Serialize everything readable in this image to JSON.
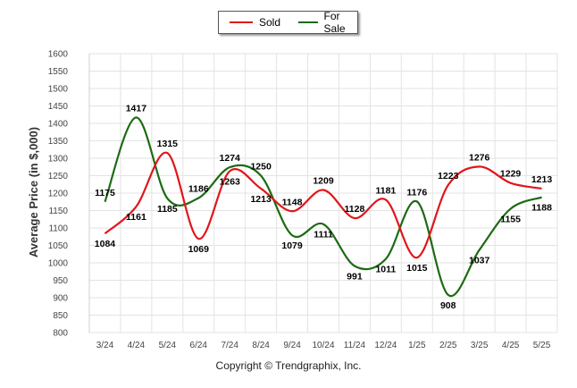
{
  "legend": {
    "items": [
      {
        "label": "Sold",
        "color": "#e0161b"
      },
      {
        "label": "For Sale",
        "color": "#1c6b12"
      }
    ]
  },
  "footer": {
    "copyright": "Copyright © Trendgraphix, Inc."
  },
  "chart_data": {
    "type": "line",
    "title": "",
    "xlabel": "",
    "ylabel": "Average Price (in $,000)",
    "ylim": [
      800,
      1600
    ],
    "yticks": [
      800,
      850,
      900,
      950,
      1000,
      1050,
      1100,
      1150,
      1200,
      1250,
      1300,
      1350,
      1400,
      1450,
      1500,
      1550,
      1600
    ],
    "grid": true,
    "legend_position": "top-center",
    "categories": [
      "3/24",
      "4/24",
      "5/24",
      "6/24",
      "7/24",
      "8/24",
      "9/24",
      "10/24",
      "11/24",
      "12/24",
      "1/25",
      "2/25",
      "3/25",
      "4/25",
      "5/25"
    ],
    "series": [
      {
        "name": "Sold",
        "color": "#e0161b",
        "values": [
          1084,
          1161,
          1315,
          1069,
          1263,
          1213,
          1148,
          1209,
          1128,
          1181,
          1015,
          1223,
          1276,
          1229,
          1213
        ]
      },
      {
        "name": "For Sale",
        "color": "#1c6b12",
        "values": [
          1175,
          1417,
          1185,
          1186,
          1274,
          1250,
          1079,
          1111,
          991,
          1011,
          1176,
          908,
          1037,
          1155,
          1188
        ]
      }
    ]
  }
}
